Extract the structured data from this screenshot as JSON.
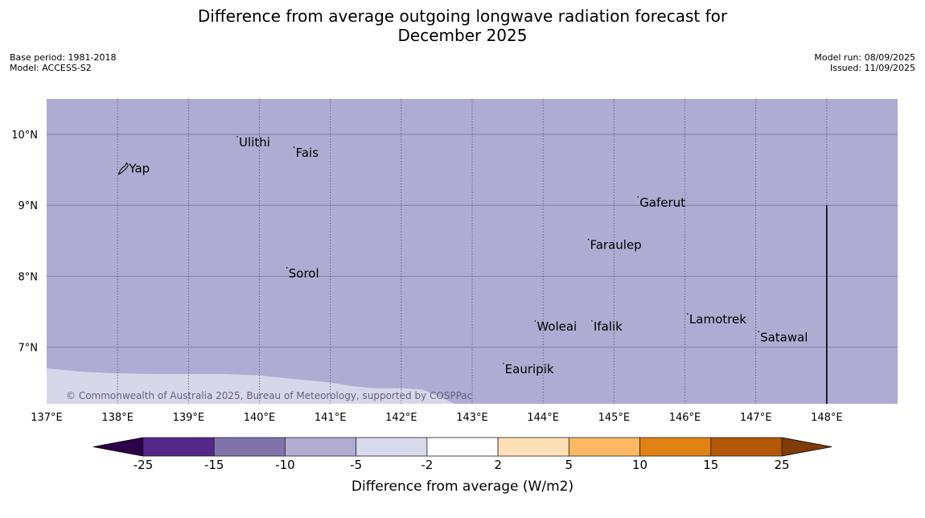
{
  "title": "Difference from average outgoing longwave radiation forecast for\nDecember 2025",
  "base_period": "Base period: 1981-2018",
  "model": "Model: ACCESS-S2",
  "model_run": "Model run: 08/09/2025",
  "issued": "Issued: 11/09/2025",
  "copyright": "© Commonwealth of Australia 2025, Bureau of Meteorology, supported by COSPPac",
  "map": {
    "lon_range": [
      137,
      149
    ],
    "lat_range": [
      6.2,
      10.5
    ],
    "lon_ticks": [
      137,
      138,
      139,
      140,
      141,
      142,
      143,
      144,
      145,
      146,
      147,
      148
    ],
    "lon_tick_labels": [
      "137°E",
      "138°E",
      "139°E",
      "140°E",
      "141°E",
      "142°E",
      "143°E",
      "144°E",
      "145°E",
      "146°E",
      "147°E",
      "148°E"
    ],
    "lat_ticks": [
      7,
      8,
      9,
      10
    ],
    "lat_tick_labels": [
      "7°N",
      "8°N",
      "9°N",
      "10°N"
    ],
    "background_color": "#b0abd2",
    "lower_region_color": "#d7d7e9",
    "lower_region_boundary": [
      [
        137.0,
        6.7
      ],
      [
        137.5,
        6.65
      ],
      [
        138.0,
        6.63
      ],
      [
        138.5,
        6.62
      ],
      [
        139.0,
        6.62
      ],
      [
        139.5,
        6.62
      ],
      [
        140.0,
        6.6
      ],
      [
        140.5,
        6.55
      ],
      [
        141.0,
        6.5
      ],
      [
        141.3,
        6.45
      ],
      [
        141.6,
        6.42
      ],
      [
        142.0,
        6.42
      ],
      [
        142.3,
        6.4
      ],
      [
        142.6,
        6.27
      ],
      [
        142.75,
        6.2
      ]
    ],
    "places": [
      {
        "name": "Yap",
        "lon": 138.15,
        "lat": 9.53
      },
      {
        "name": "Ulithi",
        "lon": 139.7,
        "lat": 9.9
      },
      {
        "name": "Fais",
        "lon": 140.5,
        "lat": 9.75
      },
      {
        "name": "Gaferut",
        "lon": 145.35,
        "lat": 9.05
      },
      {
        "name": "Faraulep",
        "lon": 144.65,
        "lat": 8.45
      },
      {
        "name": "Sorol",
        "lon": 140.4,
        "lat": 8.05
      },
      {
        "name": "Lamotrek",
        "lon": 146.05,
        "lat": 7.4
      },
      {
        "name": "Woleai",
        "lon": 143.9,
        "lat": 7.3
      },
      {
        "name": "Ifalik",
        "lon": 144.7,
        "lat": 7.3
      },
      {
        "name": "Satawal",
        "lon": 147.05,
        "lat": 7.15
      },
      {
        "name": "Eauripik",
        "lon": 143.45,
        "lat": 6.7
      }
    ],
    "boundary_line": {
      "lon": 148.0,
      "lat_from": 9.0,
      "lat_to": 6.2
    }
  },
  "colorbar": {
    "label": "Difference from average (W/m2)",
    "tick_labels": [
      "-25",
      "-15",
      "-10",
      "-5",
      "-2",
      "2",
      "5",
      "10",
      "15",
      "25"
    ],
    "colors": [
      "#542788",
      "#8073ac",
      "#b2abd2",
      "#d8daeb",
      "#ffffff",
      "#fee0b6",
      "#fdb863",
      "#e08214",
      "#b35806"
    ],
    "under_color": "#2d004b",
    "over_color": "#7f3b08"
  }
}
